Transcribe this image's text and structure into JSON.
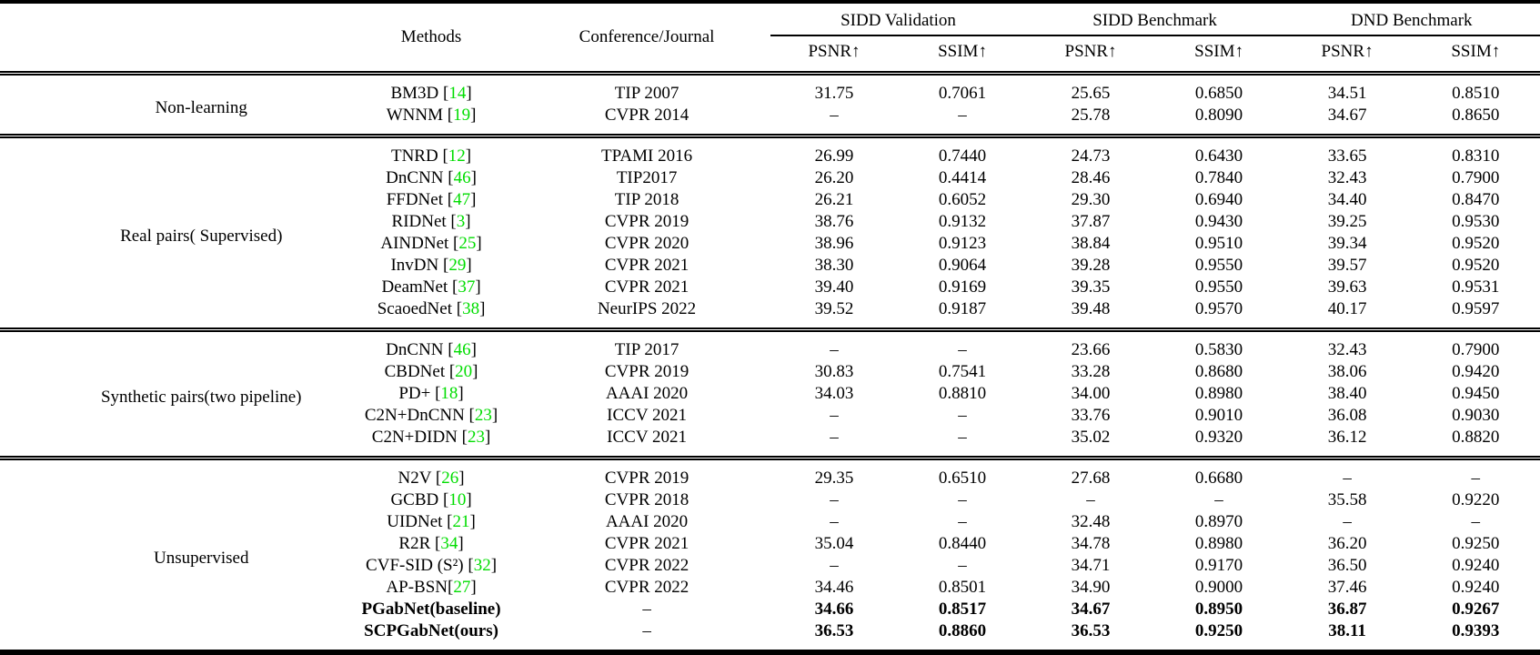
{
  "colors": {
    "citation_green": "#00DD00",
    "text": "#000000",
    "background": "#ffffff"
  },
  "table": {
    "header": {
      "methods": "Methods",
      "conference": "Conference/Journal",
      "groups": [
        {
          "label": "SIDD Validation"
        },
        {
          "label": "SIDD Benchmark"
        },
        {
          "label": "DND Benchmark"
        }
      ],
      "metrics": [
        "PSNR↑",
        "SSIM↑",
        "PSNR↑",
        "SSIM↑",
        "PSNR↑",
        "SSIM↑"
      ]
    },
    "sections": [
      {
        "id": "non-learning",
        "category": "Non-learning",
        "rows": [
          {
            "method": "BM3D",
            "cite": "14",
            "cite_space": true,
            "conference": "TIP 2007",
            "bold": false,
            "values": [
              "31.75",
              "0.7061",
              "25.65",
              "0.6850",
              "34.51",
              "0.8510"
            ]
          },
          {
            "method": "WNNM",
            "cite": "19",
            "cite_space": true,
            "conference": "CVPR 2014",
            "bold": false,
            "values": [
              "–",
              "–",
              "25.78",
              "0.8090",
              "34.67",
              "0.8650"
            ]
          }
        ]
      },
      {
        "id": "real-pairs-supervised",
        "category": "Real pairs( Supervised)",
        "rows": [
          {
            "method": "TNRD",
            "cite": "12",
            "cite_space": true,
            "conference": "TPAMI 2016",
            "bold": false,
            "values": [
              "26.99",
              "0.7440",
              "24.73",
              "0.6430",
              "33.65",
              "0.8310"
            ]
          },
          {
            "method": "DnCNN",
            "cite": "46",
            "cite_space": true,
            "conference": "TIP2017",
            "bold": false,
            "values": [
              "26.20",
              "0.4414",
              "28.46",
              "0.7840",
              "32.43",
              "0.7900"
            ]
          },
          {
            "method": "FFDNet",
            "cite": "47",
            "cite_space": true,
            "conference": "TIP 2018",
            "bold": false,
            "values": [
              "26.21",
              "0.6052",
              "29.30",
              "0.6940",
              "34.40",
              "0.8470"
            ]
          },
          {
            "method": "RIDNet",
            "cite": "3",
            "cite_space": true,
            "conference": "CVPR 2019",
            "bold": false,
            "values": [
              "38.76",
              "0.9132",
              "37.87",
              "0.9430",
              "39.25",
              "0.9530"
            ]
          },
          {
            "method": "AINDNet",
            "cite": "25",
            "cite_space": true,
            "conference": "CVPR 2020",
            "bold": false,
            "values": [
              "38.96",
              "0.9123",
              "38.84",
              "0.9510",
              "39.34",
              "0.9520"
            ]
          },
          {
            "method": "InvDN",
            "cite": "29",
            "cite_space": true,
            "conference": "CVPR 2021",
            "bold": false,
            "values": [
              "38.30",
              "0.9064",
              "39.28",
              "0.9550",
              "39.57",
              "0.9520"
            ]
          },
          {
            "method": "DeamNet",
            "cite": "37",
            "cite_space": true,
            "conference": "CVPR 2021",
            "bold": false,
            "values": [
              "39.40",
              "0.9169",
              "39.35",
              "0.9550",
              "39.63",
              "0.9531"
            ]
          },
          {
            "method": "ScaoedNet",
            "cite": "38",
            "cite_space": true,
            "conference": "NeurIPS 2022",
            "bold": false,
            "values": [
              "39.52",
              "0.9187",
              "39.48",
              "0.9570",
              "40.17",
              "0.9597"
            ]
          }
        ]
      },
      {
        "id": "synthetic-pairs",
        "category": "Synthetic pairs(two pipeline)",
        "rows": [
          {
            "method": "DnCNN",
            "cite": "46",
            "cite_space": true,
            "conference": "TIP 2017",
            "bold": false,
            "values": [
              "–",
              "–",
              "23.66",
              "0.5830",
              "32.43",
              "0.7900"
            ]
          },
          {
            "method": "CBDNet",
            "cite": "20",
            "cite_space": true,
            "conference": "CVPR 2019",
            "bold": false,
            "values": [
              "30.83",
              "0.7541",
              "33.28",
              "0.8680",
              "38.06",
              "0.9420"
            ]
          },
          {
            "method": "PD+",
            "cite": "18",
            "cite_space": true,
            "conference": "AAAI 2020",
            "bold": false,
            "values": [
              "34.03",
              "0.8810",
              "34.00",
              "0.8980",
              "38.40",
              "0.9450"
            ]
          },
          {
            "method": "C2N+DnCNN",
            "cite": "23",
            "cite_space": true,
            "conference": "ICCV 2021",
            "bold": false,
            "values": [
              "–",
              "–",
              "33.76",
              "0.9010",
              "36.08",
              "0.9030"
            ]
          },
          {
            "method": "C2N+DIDN",
            "cite": "23",
            "cite_space": true,
            "conference": "ICCV 2021",
            "bold": false,
            "values": [
              "–",
              "–",
              "35.02",
              "0.9320",
              "36.12",
              "0.8820"
            ]
          }
        ]
      },
      {
        "id": "unsupervised",
        "category": "Unsupervised",
        "rows": [
          {
            "method": "N2V",
            "cite": "26",
            "cite_space": true,
            "conference": "CVPR 2019",
            "bold": false,
            "values": [
              "29.35",
              "0.6510",
              "27.68",
              "0.6680",
              "–",
              "–"
            ]
          },
          {
            "method": "GCBD",
            "cite": "10",
            "cite_space": true,
            "conference": "CVPR 2018",
            "bold": false,
            "values": [
              "–",
              "–",
              "–",
              "–",
              "35.58",
              "0.9220"
            ]
          },
          {
            "method": "UIDNet",
            "cite": "21",
            "cite_space": true,
            "conference": "AAAI 2020",
            "bold": false,
            "values": [
              "–",
              "–",
              "32.48",
              "0.8970",
              "–",
              "–"
            ]
          },
          {
            "method": "R2R",
            "cite": "34",
            "cite_space": true,
            "conference": "CVPR 2021",
            "bold": false,
            "values": [
              "35.04",
              "0.8440",
              "34.78",
              "0.8980",
              "36.20",
              "0.9250"
            ]
          },
          {
            "method": "CVF-SID (S²)",
            "cite": "32",
            "cite_space": true,
            "conference": "CVPR 2022",
            "bold": false,
            "values": [
              "–",
              "–",
              "34.71",
              "0.9170",
              "36.50",
              "0.9240"
            ]
          },
          {
            "method": "AP-BSN",
            "cite": "27",
            "cite_space": false,
            "conference": "CVPR 2022",
            "bold": false,
            "values": [
              "34.46",
              "0.8501",
              "34.90",
              "0.9000",
              "37.46",
              "0.9240"
            ]
          },
          {
            "method": "PGabNet(baseline)",
            "cite": null,
            "cite_space": false,
            "conference": "–",
            "bold": true,
            "values": [
              "34.66",
              "0.8517",
              "34.67",
              "0.8950",
              "36.87",
              "0.9267"
            ]
          },
          {
            "method": "SCPGabNet(ours)",
            "cite": null,
            "cite_space": false,
            "conference": "–",
            "bold": true,
            "values": [
              "36.53",
              "0.8860",
              "36.53",
              "0.9250",
              "38.11",
              "0.9393"
            ]
          }
        ]
      }
    ]
  }
}
